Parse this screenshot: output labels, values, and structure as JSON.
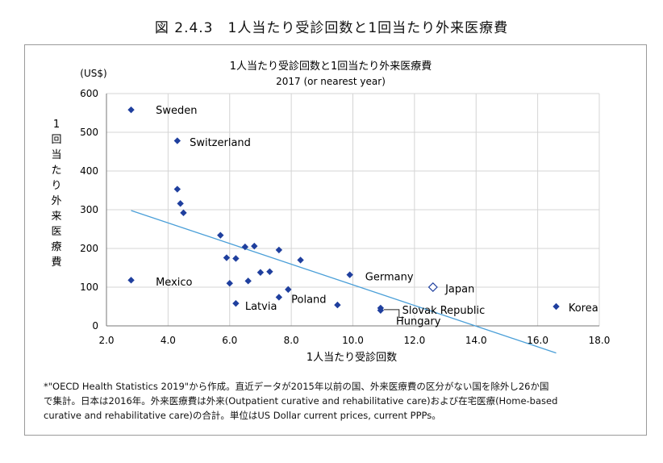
{
  "figure_title": "図 2.4.3　1人当たり受診回数と1回当たり外来医療費",
  "footnote": [
    "*\"OECD Health Statistics 2019\"から作成。直近データが2015年以前の国、外来医療費の区分がない国を除外し26か国",
    "で集計。日本は2016年。外来医療費は外来(Outpatient curative and rehabilitative care)および在宅医療(Home-based",
    "curative and rehabilitative care)の合計。単位はUS Dollar current prices, current PPPs。"
  ],
  "colors": {
    "marker": "#1f3f9e",
    "trend": "#4a9fd8",
    "grid": "#d4d4d4"
  },
  "chart_data": {
    "type": "scatter",
    "title": "1人当たり受診回数と1回当たり外来医療費",
    "subtitle": "2017 (or nearest year)",
    "xlabel": "1人当たり受診回数",
    "ylabel": [
      "1",
      "回",
      "当",
      "た",
      "り",
      "外",
      "来",
      "医",
      "療",
      "費"
    ],
    "yunit": "(US$)",
    "xlim": [
      2.0,
      18.0
    ],
    "ylim": [
      0,
      600
    ],
    "xticks": [
      "2.0",
      "4.0",
      "6.0",
      "8.0",
      "10.0",
      "12.0",
      "14.0",
      "16.0",
      "18.0"
    ],
    "yticks": [
      "0",
      "100",
      "200",
      "300",
      "400",
      "500",
      "600"
    ],
    "grid": true,
    "points": [
      {
        "x": 2.8,
        "y": 558
      },
      {
        "x": 4.3,
        "y": 478
      },
      {
        "x": 4.3,
        "y": 353
      },
      {
        "x": 4.4,
        "y": 316
      },
      {
        "x": 4.5,
        "y": 292
      },
      {
        "x": 2.8,
        "y": 118
      },
      {
        "x": 5.7,
        "y": 234
      },
      {
        "x": 5.9,
        "y": 176
      },
      {
        "x": 6.2,
        "y": 174
      },
      {
        "x": 6.0,
        "y": 110
      },
      {
        "x": 6.5,
        "y": 204
      },
      {
        "x": 6.8,
        "y": 206
      },
      {
        "x": 6.6,
        "y": 116
      },
      {
        "x": 6.2,
        "y": 58
      },
      {
        "x": 7.0,
        "y": 138
      },
      {
        "x": 7.3,
        "y": 140
      },
      {
        "x": 7.6,
        "y": 196
      },
      {
        "x": 8.3,
        "y": 170
      },
      {
        "x": 7.9,
        "y": 94
      },
      {
        "x": 7.6,
        "y": 74
      },
      {
        "x": 9.9,
        "y": 132
      },
      {
        "x": 9.5,
        "y": 54
      },
      {
        "x": 10.9,
        "y": 46
      },
      {
        "x": 10.9,
        "y": 40
      },
      {
        "x": 16.6,
        "y": 50
      }
    ],
    "japan": {
      "x": 12.6,
      "y": 100
    },
    "labels": [
      {
        "text": "Sweden",
        "x": 3.6,
        "y": 558
      },
      {
        "text": "Switzerland",
        "x": 4.7,
        "y": 475
      },
      {
        "text": "Mexico",
        "x": 3.6,
        "y": 115
      },
      {
        "text": "Latvia",
        "x": 6.5,
        "y": 52
      },
      {
        "text": "Poland",
        "x": 8.0,
        "y": 70
      },
      {
        "text": "Germany",
        "x": 10.4,
        "y": 128
      },
      {
        "text": "Japan",
        "x": 13.0,
        "y": 97
      },
      {
        "text": "Slovak Republic",
        "x": 11.6,
        "y": 42
      },
      {
        "text": "Hungary",
        "x": 11.4,
        "y": 14
      },
      {
        "text": "Korea",
        "x": 17.0,
        "y": 48
      }
    ],
    "trendline": [
      {
        "x": 2.8,
        "y": 298
      },
      {
        "x": 16.6,
        "y": -70
      }
    ]
  }
}
